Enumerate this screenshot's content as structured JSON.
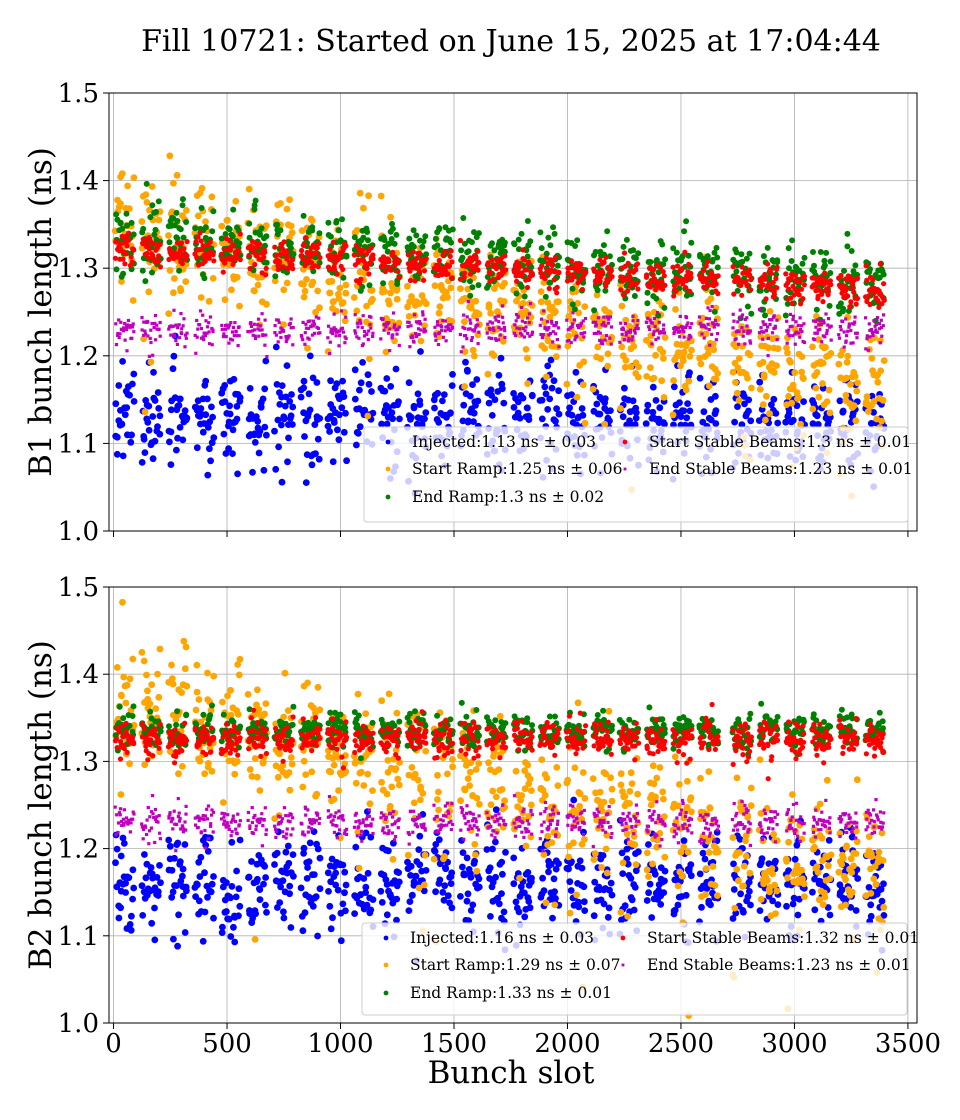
{
  "figure": {
    "suptitle": "Fill 10721: Started on June 15, 2025 at 17:04:44",
    "xlabel": "Bunch slot"
  },
  "chart_data": [
    {
      "type": "scatter",
      "ylabel": "B1 bunch length (ns)",
      "xlabel": "",
      "xlim": [
        -20,
        3540
      ],
      "ylim": [
        1.0,
        1.5
      ],
      "xticks": [
        0,
        500,
        1000,
        1500,
        2000,
        2500,
        3000,
        3500
      ],
      "yticks": [
        1.0,
        1.1,
        1.2,
        1.3,
        1.4,
        1.5
      ],
      "ytick_labels": [
        "1.0",
        "1.1",
        "1.2",
        "1.3",
        "1.4",
        "1.5"
      ],
      "xtick_labels_visible": false,
      "grid": true,
      "legend_position": "lower-right",
      "legend_columns": 2,
      "series": [
        {
          "name": "Injected",
          "legend_label": "Injected:1.13 ns ± 0.03",
          "color": "#0000ff",
          "marker": "circle-large",
          "mean": 1.13,
          "std": 0.03,
          "slope_per_slot": 0.0,
          "x_range": [
            0,
            3430
          ]
        },
        {
          "name": "Start Ramp",
          "legend_label": "Start Ramp:1.25 ns ± 0.06",
          "color": "#ffa500",
          "marker": "circle-large",
          "mean": 1.25,
          "std": 0.06,
          "start": 1.35,
          "end": 1.16,
          "x_range": [
            0,
            3430
          ]
        },
        {
          "name": "End Ramp",
          "legend_label": "End Ramp:1.3 ns ± 0.02",
          "color": "#008000",
          "marker": "circle-medium",
          "mean": 1.3,
          "std": 0.02,
          "start": 1.335,
          "end": 1.283,
          "x_range": [
            0,
            3430
          ]
        },
        {
          "name": "Start Stable Beams",
          "legend_label": "Start Stable Beams:1.3 ns ± 0.01",
          "color": "#ff0000",
          "marker": "circle-small",
          "mean": 1.3,
          "std": 0.01,
          "start": 1.325,
          "end": 1.275,
          "x_range": [
            0,
            3430
          ]
        },
        {
          "name": "End Stable Beams",
          "legend_label": "End Stable Beams:1.23 ns ± 0.01",
          "color": "#bf00bf",
          "marker": "square-tiny",
          "mean": 1.23,
          "std": 0.01,
          "start": 1.23,
          "end": 1.23,
          "x_range": [
            0,
            3430
          ]
        }
      ]
    },
    {
      "type": "scatter",
      "ylabel": "B2 bunch length (ns)",
      "xlabel": "Bunch slot",
      "xlim": [
        -20,
        3540
      ],
      "ylim": [
        1.0,
        1.5
      ],
      "xticks": [
        0,
        500,
        1000,
        1500,
        2000,
        2500,
        3000,
        3500
      ],
      "xtick_labels": [
        "0",
        "500",
        "1000",
        "1500",
        "2000",
        "2500",
        "3000",
        "3500"
      ],
      "yticks": [
        1.0,
        1.1,
        1.2,
        1.3,
        1.4,
        1.5
      ],
      "ytick_labels": [
        "1.0",
        "1.1",
        "1.2",
        "1.3",
        "1.4",
        "1.5"
      ],
      "grid": true,
      "legend_position": "lower-right",
      "legend_columns": 2,
      "series": [
        {
          "name": "Injected",
          "legend_label": "Injected:1.16 ns ± 0.03",
          "color": "#0000ff",
          "marker": "circle-large",
          "mean": 1.16,
          "std": 0.03,
          "slope_per_slot": 0.0,
          "x_range": [
            0,
            3430
          ]
        },
        {
          "name": "Start Ramp",
          "legend_label": "Start Ramp:1.29 ns ± 0.07",
          "color": "#ffa500",
          "marker": "circle-large",
          "mean": 1.29,
          "std": 0.07,
          "start": 1.37,
          "end": 1.17,
          "x_range": [
            0,
            3430
          ]
        },
        {
          "name": "End Ramp",
          "legend_label": "End Ramp:1.33 ns ± 0.01",
          "color": "#008000",
          "marker": "circle-medium",
          "mean": 1.33,
          "std": 0.01,
          "start": 1.335,
          "end": 1.335,
          "x_range": [
            0,
            3430
          ]
        },
        {
          "name": "Start Stable Beams",
          "legend_label": "Start Stable Beams:1.32 ns ± 0.01",
          "color": "#ff0000",
          "marker": "circle-small",
          "mean": 1.32,
          "std": 0.01,
          "start": 1.325,
          "end": 1.325,
          "x_range": [
            0,
            3430
          ]
        },
        {
          "name": "End Stable Beams",
          "legend_label": "End Stable Beams:1.23 ns ± 0.01",
          "color": "#bf00bf",
          "marker": "square-tiny",
          "mean": 1.23,
          "std": 0.01,
          "start": 1.23,
          "end": 1.23,
          "x_range": [
            0,
            3430
          ]
        }
      ]
    }
  ]
}
